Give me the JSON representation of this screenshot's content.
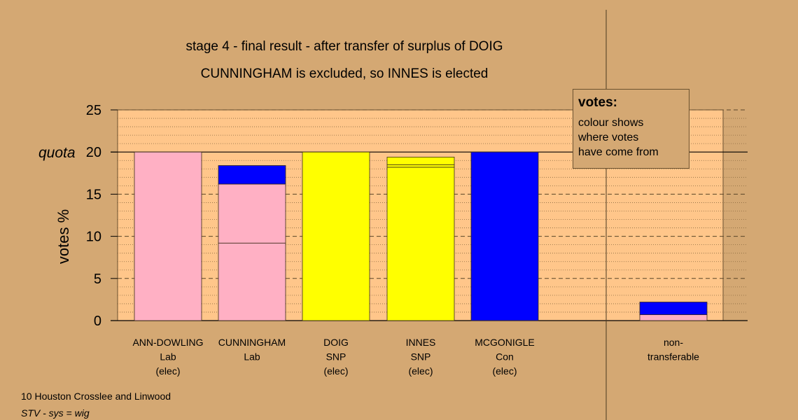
{
  "chart_data": {
    "type": "bar",
    "stacked": true,
    "title": "stage 4 - final result - after transfer of surplus of DOIG",
    "subtitle": "CUNNINGHAM is excluded, so INNES is elected",
    "ylabel": "votes %",
    "ylim": [
      0,
      25
    ],
    "yticks": [
      0,
      5,
      10,
      15,
      20,
      25
    ],
    "quota": 20,
    "quota_label": "quota",
    "grid": true,
    "candidates": [
      {
        "name": "ANN-DOWLING",
        "party": "Lab",
        "status": "(elec)",
        "segments": [
          {
            "value": 20,
            "color": "#ffb0c4"
          }
        ]
      },
      {
        "name": "CUNNINGHAM",
        "party": "Lab",
        "status": "",
        "segments": [
          {
            "value": 9.2,
            "color": "#ffb0c4"
          },
          {
            "value": 7.0,
            "color": "#ffb0c4"
          },
          {
            "value": 2.2,
            "color": "#0000ff"
          }
        ]
      },
      {
        "name": "DOIG",
        "party": "SNP",
        "status": "(elec)",
        "segments": [
          {
            "value": 20,
            "color": "#ffff00"
          }
        ]
      },
      {
        "name": "INNES",
        "party": "SNP",
        "status": "(elec)",
        "segments": [
          {
            "value": 18.2,
            "color": "#ffff00"
          },
          {
            "value": 0.3,
            "color": "#ffff00"
          },
          {
            "value": 0.9,
            "color": "#ffff00"
          }
        ]
      },
      {
        "name": "MCGONIGLE",
        "party": "Con",
        "status": "(elec)",
        "segments": [
          {
            "value": 20,
            "color": "#0000ff"
          }
        ]
      }
    ],
    "nontransferable": {
      "label_line1": "non-",
      "label_line2": "transferable",
      "segments": [
        {
          "value": 0.7,
          "color": "#ffb0c4"
        },
        {
          "value": 1.5,
          "color": "#0000ff"
        }
      ]
    }
  },
  "legend": {
    "title": "votes:",
    "lines": [
      "colour shows",
      "where votes",
      "have come from"
    ]
  },
  "footer": {
    "ward": "10 Houston Crosslee and Linwood",
    "system": "STV - sys = wig"
  }
}
